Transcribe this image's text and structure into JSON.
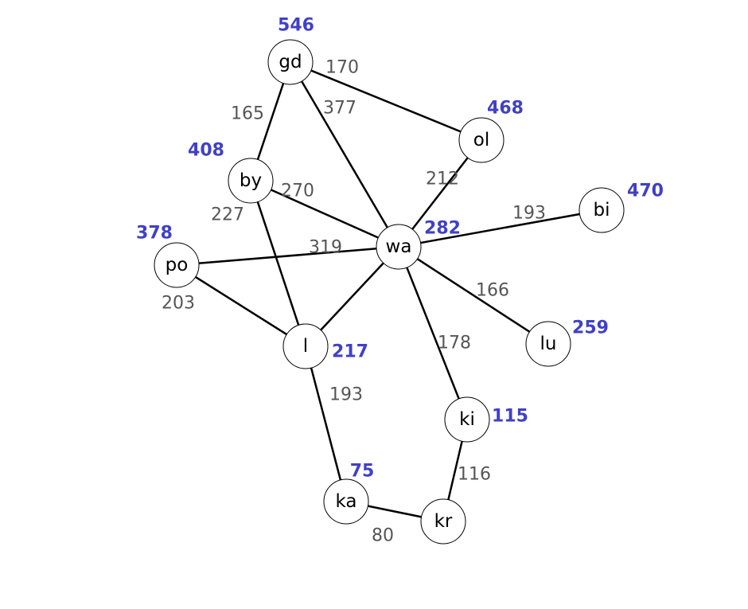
{
  "nodes": [
    {
      "id": "gd",
      "label": "gd",
      "value": "546"
    },
    {
      "id": "ol",
      "label": "ol",
      "value": "468"
    },
    {
      "id": "by",
      "label": "by",
      "value": "408"
    },
    {
      "id": "bi",
      "label": "bi",
      "value": "470"
    },
    {
      "id": "po",
      "label": "po",
      "value": "378"
    },
    {
      "id": "wa",
      "label": "wa",
      "value": "282"
    },
    {
      "id": "lu",
      "label": "lu",
      "value": "259"
    },
    {
      "id": "l",
      "label": "l",
      "value": "217"
    },
    {
      "id": "ki",
      "label": "ki",
      "value": "115"
    },
    {
      "id": "ka",
      "label": "ka",
      "value": "75"
    },
    {
      "id": "kr",
      "label": "kr",
      "value": "",
      "label_hidden": true
    }
  ],
  "edges": [
    {
      "from": "gd",
      "to": "ol",
      "weight": "170"
    },
    {
      "from": "gd",
      "to": "wa",
      "weight": "377"
    },
    {
      "from": "gd",
      "to": "by",
      "weight": "165"
    },
    {
      "from": "ol",
      "to": "wa",
      "weight": "212"
    },
    {
      "from": "by",
      "to": "wa",
      "weight": "270"
    },
    {
      "from": "by",
      "to": "l",
      "weight": "227"
    },
    {
      "from": "po",
      "to": "wa",
      "weight": "319"
    },
    {
      "from": "po",
      "to": "l",
      "weight": "203"
    },
    {
      "from": "wa",
      "to": "bi",
      "weight": "193"
    },
    {
      "from": "wa",
      "to": "lu",
      "weight": "166"
    },
    {
      "from": "wa",
      "to": "ki",
      "weight": "178"
    },
    {
      "from": "wa",
      "to": "l",
      "weight": ""
    },
    {
      "from": "l",
      "to": "ka",
      "weight": "193"
    },
    {
      "from": "ki",
      "to": "kr",
      "weight": "116"
    },
    {
      "from": "ka",
      "to": "kr",
      "weight": "80"
    }
  ],
  "colors": {
    "edge": "#000000",
    "node_fill": "#ffffff",
    "node_stroke": "#000000",
    "weight_text": "#555555",
    "value_text": "#4040c8"
  }
}
